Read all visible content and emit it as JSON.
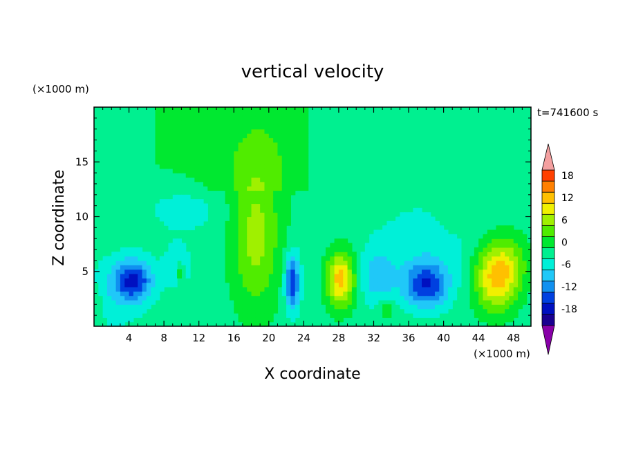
{
  "chart_data": {
    "type": "heatmap",
    "title": "vertical velocity",
    "xlabel": "X coordinate",
    "ylabel": "Z coordinate",
    "x_unit": "(×1000 m)",
    "y_unit": "(×1000 m)",
    "time_label": "t=741600 s",
    "xlim": [
      0,
      50
    ],
    "ylim": [
      0,
      20
    ],
    "xticks": [
      4,
      8,
      12,
      16,
      20,
      24,
      28,
      32,
      36,
      40,
      44,
      48
    ],
    "yticks": [
      5,
      10,
      15
    ],
    "colorbar": {
      "ticks": [
        18,
        12,
        6,
        0,
        -6,
        -12,
        -18
      ],
      "levels": [
        -21,
        -18,
        -15,
        -12,
        -9,
        -6,
        -3,
        0,
        3,
        6,
        9,
        12,
        15,
        18,
        21
      ],
      "colors": [
        "#6a00a8",
        "#1a0090",
        "#0010c0",
        "#0040e0",
        "#1090f0",
        "#20c8f8",
        "#00f0d8",
        "#00f090",
        "#00e830",
        "#50ec00",
        "#a0f000",
        "#f0f000",
        "#ffc000",
        "#ff8000",
        "#ff4000",
        "#ff1000"
      ],
      "over_color": "#f4a0a0",
      "under_color": "#8800a8"
    },
    "background_value": -1.5,
    "features": [
      {
        "x": 4.5,
        "z": 4.2,
        "sx": 2.2,
        "sz": 1.8,
        "amp": -13
      },
      {
        "x": 2.5,
        "z": 3.0,
        "sx": 3.5,
        "sz": 3.5,
        "amp": -3
      },
      {
        "x": 0.2,
        "z": 2.0,
        "sx": 0.8,
        "sz": 1.5,
        "amp": 3
      },
      {
        "x": 9.5,
        "z": 5.5,
        "sx": 1.5,
        "sz": 2.0,
        "amp": -4
      },
      {
        "x": 9.8,
        "z": 5.0,
        "sx": 0.5,
        "sz": 0.9,
        "amp": 6
      },
      {
        "x": 10.5,
        "z": 10.5,
        "sx": 5.0,
        "sz": 2.2,
        "amp": -2.5
      },
      {
        "x": 18.5,
        "z": 8.0,
        "sx": 2.8,
        "sz": 6.5,
        "amp": 8.5
      },
      {
        "x": 19.0,
        "z": 16.0,
        "sx": 6.0,
        "sz": 5.0,
        "amp": 2.5
      },
      {
        "x": 22.7,
        "z": 4.0,
        "sx": 0.8,
        "sz": 2.5,
        "amp": -14
      },
      {
        "x": 28.2,
        "z": 4.3,
        "sx": 1.6,
        "sz": 2.5,
        "amp": 15
      },
      {
        "x": 32.5,
        "z": 4.5,
        "sx": 2.0,
        "sz": 2.5,
        "amp": -6
      },
      {
        "x": 33.5,
        "z": 1.6,
        "sx": 1.0,
        "sz": 0.9,
        "amp": 4
      },
      {
        "x": 38.0,
        "z": 3.8,
        "sx": 2.5,
        "sz": 2.0,
        "amp": -13
      },
      {
        "x": 38.0,
        "z": 7.5,
        "sx": 6.0,
        "sz": 4.0,
        "amp": -3
      },
      {
        "x": 46.0,
        "z": 4.5,
        "sx": 2.4,
        "sz": 3.0,
        "amp": 15
      },
      {
        "x": 48.0,
        "z": 6.0,
        "sx": 2.0,
        "sz": 2.5,
        "amp": 4
      },
      {
        "x": 41.5,
        "z": 10.0,
        "sx": 2.5,
        "sz": 1.5,
        "amp": 2
      }
    ],
    "upper_zone": {
      "x_from": 7,
      "x_to": 24.5,
      "z_from": 12.5,
      "value": 1.5
    }
  }
}
